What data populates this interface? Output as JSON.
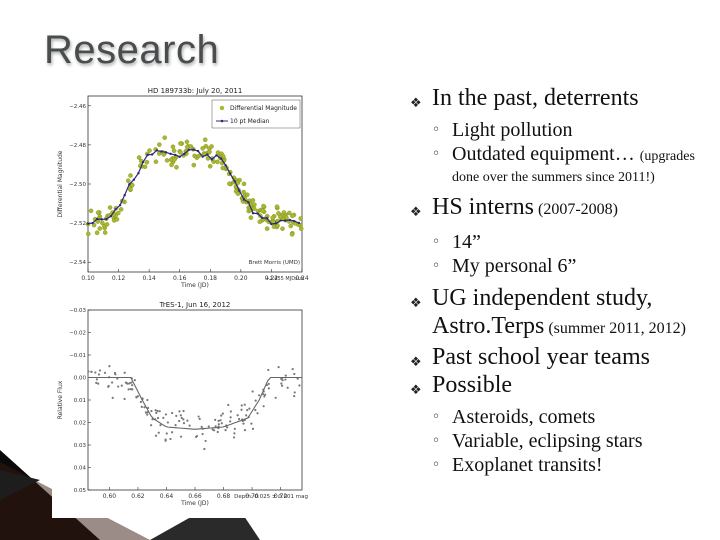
{
  "slide": {
    "title": "Research",
    "bullets": [
      {
        "text": "In the past, deterrents",
        "suffix": ""
      },
      {
        "text": "HS interns",
        "suffix": " (2007-2008)"
      },
      {
        "text": "UG independent study, Astro.Terps",
        "suffix": " (summer 2011, 2012)"
      },
      {
        "text": "Past school year teams",
        "suffix": ""
      },
      {
        "text": "Possible",
        "suffix": ""
      }
    ],
    "sub1": [
      "Light pollution",
      "Outdated equipment…"
    ],
    "sub1_note": "(upgrades",
    "sub1_cont": "done over the summers since 2011!)",
    "sub2": [
      "14”",
      "My personal 6”"
    ],
    "sub5": [
      "Asteroids, comets",
      "Variable, eclipsing stars",
      "Exoplanet transits!"
    ]
  },
  "chart_data": [
    {
      "type": "scatter",
      "title": "HD 189733b: July 20, 2011",
      "xlabel": "Time (JD)",
      "ylabel": "Differential Magnitude",
      "xticks": [
        "0.10",
        "0.12",
        "0.14",
        "0.16",
        "0.18",
        "0.20",
        "0.22",
        "0.24"
      ],
      "yticks": [
        "−2.54",
        "−2.52",
        "−2.50",
        "−2.48",
        "−2.46"
      ],
      "xlim": [
        0.1,
        0.24
      ],
      "ylim": [
        -2.455,
        -2.545
      ],
      "legend": [
        "Differential Magnitude",
        "10 pt Median"
      ],
      "annotations": [
        "Brett Morris (UMD)",
        "+2.455 MJDsub"
      ],
      "series": [
        {
          "name": "Differential Magnitude",
          "color": "#aab830",
          "style": "points"
        },
        {
          "name": "10 pt Median",
          "color": "#2a2a7a",
          "style": "line-dot",
          "x": [
            0.1,
            0.11,
            0.12,
            0.13,
            0.14,
            0.15,
            0.16,
            0.17,
            0.18,
            0.19,
            0.2,
            0.21,
            0.22,
            0.23,
            0.24
          ],
          "y": [
            -2.52,
            -2.518,
            -2.512,
            -2.497,
            -2.485,
            -2.483,
            -2.485,
            -2.483,
            -2.485,
            -2.49,
            -2.505,
            -2.515,
            -2.52,
            -2.518,
            -2.52
          ]
        }
      ]
    },
    {
      "type": "scatter",
      "title": "TrES-1, Jun 16, 2012",
      "xlabel": "Time (JD)",
      "ylabel": "Relative Flux",
      "xticks": [
        "0.60",
        "0.62",
        "0.64",
        "0.66",
        "0.68",
        "0.70",
        "0.72"
      ],
      "yticks": [
        "−0.03",
        "−0.02",
        "−0.01",
        "0.00",
        "0.01",
        "0.02",
        "0.03",
        "0.04",
        "0.05"
      ],
      "xlim": [
        0.585,
        0.735
      ],
      "ylim": [
        -0.03,
        0.05
      ],
      "annotations": [
        "Depth: 0.025 ± 0.001 mag"
      ],
      "series": [
        {
          "name": "data",
          "color": "#777777",
          "style": "points"
        },
        {
          "name": "model",
          "color": "#666666",
          "style": "line",
          "x": [
            0.585,
            0.615,
            0.623,
            0.63,
            0.64,
            0.66,
            0.68,
            0.697,
            0.705,
            0.712,
            0.735
          ],
          "y": [
            0.0,
            0.0,
            0.01,
            0.018,
            0.022,
            0.023,
            0.022,
            0.018,
            0.01,
            0.0,
            0.0
          ]
        }
      ]
    }
  ]
}
